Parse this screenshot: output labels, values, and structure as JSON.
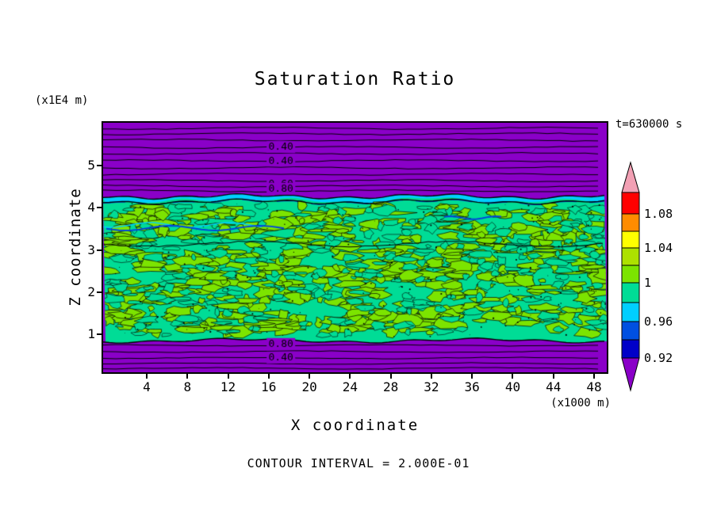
{
  "title": "Saturation Ratio",
  "timestamp": "t=630000 s",
  "footer_note": "CONTOUR INTERVAL = 2.000E-01",
  "axes": {
    "x_label": "X coordinate",
    "y_label": "Z coordinate",
    "x_unit": "(x1000 m)",
    "y_unit": "(x1E4 m)",
    "x_ticks": [
      "4",
      "8",
      "12",
      "16",
      "20",
      "24",
      "28",
      "32",
      "36",
      "40",
      "44",
      "48"
    ],
    "y_ticks": [
      "1",
      "2",
      "3",
      "4",
      "5"
    ]
  },
  "colorbar": {
    "tick_labels": [
      "1.08",
      "1.04",
      "1",
      "0.96",
      "0.92"
    ],
    "colors_top_to_bottom": [
      "#F2A0B4",
      "#FF0000",
      "#FF8C00",
      "#FFFF00",
      "#ADE100",
      "#7CE400",
      "#00DC96",
      "#00CFFF",
      "#0050E1",
      "#0000C8",
      "#8A00C8"
    ]
  },
  "palette": {
    "background": "#FFFFFF",
    "purple": "#8A00C8",
    "teal_green": "#00DC96",
    "bright_green": "#7CE400",
    "cyan": "#00CFFF",
    "blue": "#0046DC",
    "text": "#000000"
  },
  "chart_data": {
    "type": "heatmap",
    "subtype": "filled-contour",
    "title": "Saturation Ratio",
    "xlabel": "X coordinate",
    "ylabel": "Z coordinate",
    "x_unit": "x1000 m",
    "y_unit": "x1E4 m",
    "x_ticks": [
      4,
      8,
      12,
      16,
      20,
      24,
      28,
      32,
      36,
      40,
      44,
      48
    ],
    "y_ticks": [
      1,
      2,
      3,
      4,
      5
    ],
    "x_range": [
      0,
      50
    ],
    "y_range": [
      0.1,
      6.0
    ],
    "time_annotation": "t=630000 s",
    "contour_interval": "2.000E-01",
    "colorbar_values": [
      1.08,
      1.04,
      1.0,
      0.96,
      0.92
    ],
    "legend_position": "right",
    "regions": [
      {
        "name": "upper stratified layer",
        "z_from": 4.4,
        "z_to": 6.0,
        "saturation": "< 0.92",
        "color": "#8A00C8",
        "note": "horizontal contour lines, labels 0.40 0.40 0.60 0.80"
      },
      {
        "name": "cyan transition band",
        "z_from": 4.2,
        "z_to": 4.4,
        "saturation": "~0.96",
        "color": "#00CFFF"
      },
      {
        "name": "mottled saturated band",
        "z_from": 0.85,
        "z_to": 4.2,
        "saturation": "~1.00",
        "colors": [
          "#7CE400",
          "#00DC96"
        ],
        "note": "speckled mixture of two greens with dense black contour speckle and a few blue/cyan streaks near z=3"
      },
      {
        "name": "lower stratified layer",
        "z_from": 0.1,
        "z_to": 0.85,
        "saturation": "< 0.92",
        "color": "#8A00C8",
        "note": "horizontal contour lines, labels 0.80 0.40"
      }
    ],
    "annotations": [
      {
        "text": "0.40",
        "x": 17.2,
        "z": 5.43
      },
      {
        "text": "0.40",
        "x": 17.2,
        "z": 5.11
      },
      {
        "text": "0.60",
        "x": 17.2,
        "z": 4.55
      },
      {
        "text": "0.80",
        "x": 17.2,
        "z": 4.44
      },
      {
        "text": "0.80",
        "x": 17.2,
        "z": 0.76
      },
      {
        "text": "0.40",
        "x": 17.2,
        "z": 0.44
      }
    ]
  }
}
